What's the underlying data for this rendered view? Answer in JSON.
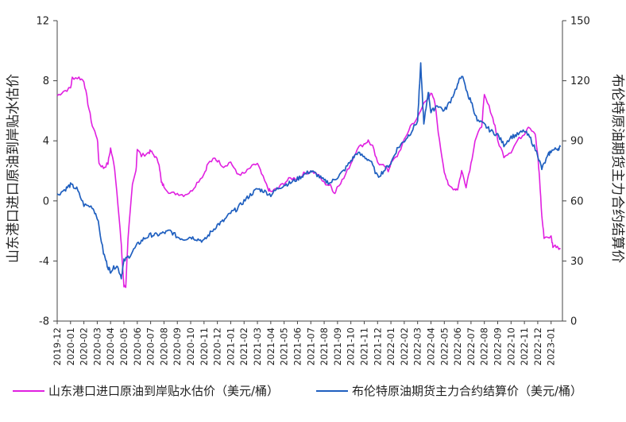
{
  "colors": {
    "series_left": "#e020e0",
    "series_right": "#1f5fbf",
    "axis": "#444444"
  },
  "chart_data": {
    "type": "line",
    "grid": false,
    "legend_placement": "bottom",
    "left_axis": {
      "label": "山东港口进口原油到岸贴水估价",
      "ylim": [
        -8,
        12
      ],
      "ticks": [
        "-8",
        "-4",
        "0",
        "4",
        "8",
        "12"
      ]
    },
    "right_axis": {
      "label": "布伦特原油期货主力合约结算价",
      "ylim": [
        0,
        150
      ],
      "ticks": [
        "0",
        "30",
        "60",
        "90",
        "120",
        "150"
      ]
    },
    "x_axis": {
      "start": "2019-12",
      "end": "2023-01",
      "tick_labels": [
        "2019-12",
        "2020-01",
        "2020-02",
        "2020-03",
        "2020-04",
        "2020-05",
        "2020-06",
        "2020-07",
        "2020-08",
        "2020-09",
        "2020-10",
        "2020-11",
        "2020-12",
        "2021-01",
        "2021-02",
        "2021-03",
        "2021-04",
        "2021-05",
        "2021-06",
        "2021-07",
        "2021-08",
        "2021-09",
        "2021-10",
        "2021-11",
        "2021-12",
        "2022-01",
        "2022-02",
        "2022-03",
        "2022-04",
        "2022-05",
        "2022-06",
        "2022-07",
        "2022-08",
        "2022-09",
        "2022-10",
        "2022-11",
        "2022-12",
        "2023-01"
      ]
    },
    "series": [
      {
        "name": "山东港口进口原油到岸贴水估价（美元/桶）",
        "axis": "left",
        "points": [
          [
            "2019-12",
            7.0
          ],
          [
            "2019-12-15",
            7.3
          ],
          [
            "2020-01",
            7.5
          ],
          [
            "2020-01-05",
            8.2
          ],
          [
            "2020-01-20",
            8.2
          ],
          [
            "2020-02",
            8.0
          ],
          [
            "2020-02-10",
            6.5
          ],
          [
            "2020-02-20",
            5.0
          ],
          [
            "2020-03",
            4.2
          ],
          [
            "2020-03-05",
            2.5
          ],
          [
            "2020-03-15",
            2.2
          ],
          [
            "2020-03-25",
            2.5
          ],
          [
            "2020-04",
            3.5
          ],
          [
            "2020-04-10",
            2.2
          ],
          [
            "2020-04-20",
            -1.0
          ],
          [
            "2020-04-25",
            -3.0
          ],
          [
            "2020-05",
            -5.7
          ],
          [
            "2020-05-05",
            -5.7
          ],
          [
            "2020-05-10",
            -2.5
          ],
          [
            "2020-05-20",
            1.0
          ],
          [
            "2020-05-28",
            2.0
          ],
          [
            "2020-06",
            3.5
          ],
          [
            "2020-06-10",
            3.0
          ],
          [
            "2020-06-25",
            3.2
          ],
          [
            "2020-07",
            3.3
          ],
          [
            "2020-07-10",
            3.0
          ],
          [
            "2020-07-20",
            2.5
          ],
          [
            "2020-07-25",
            1.2
          ],
          [
            "2020-08",
            1.0
          ],
          [
            "2020-08-15",
            0.5
          ],
          [
            "2020-09",
            0.5
          ],
          [
            "2020-09-15",
            0.4
          ],
          [
            "2020-10",
            0.6
          ],
          [
            "2020-10-15",
            1.2
          ],
          [
            "2020-11",
            1.8
          ],
          [
            "2020-11-10",
            2.5
          ],
          [
            "2020-11-25",
            2.8
          ],
          [
            "2020-12",
            2.7
          ],
          [
            "2020-12-15",
            2.3
          ],
          [
            "2021-01",
            2.6
          ],
          [
            "2021-01-15",
            1.8
          ],
          [
            "2021-02",
            1.8
          ],
          [
            "2021-02-15",
            2.2
          ],
          [
            "2021-03",
            2.5
          ],
          [
            "2021-03-10",
            1.8
          ],
          [
            "2021-03-25",
            0.8
          ],
          [
            "2021-04",
            0.6
          ],
          [
            "2021-04-15",
            0.8
          ],
          [
            "2021-05",
            1.2
          ],
          [
            "2021-05-15",
            1.5
          ],
          [
            "2021-06",
            1.5
          ],
          [
            "2021-06-15",
            1.8
          ],
          [
            "2021-07",
            2.0
          ],
          [
            "2021-07-15",
            1.8
          ],
          [
            "2021-08",
            1.2
          ],
          [
            "2021-08-15",
            1.0
          ],
          [
            "2021-08-25",
            0.5
          ],
          [
            "2021-09",
            1.0
          ],
          [
            "2021-09-15",
            1.5
          ],
          [
            "2021-10",
            2.5
          ],
          [
            "2021-10-15",
            3.5
          ],
          [
            "2021-11",
            3.8
          ],
          [
            "2021-11-10",
            4.0
          ],
          [
            "2021-11-20",
            3.6
          ],
          [
            "2021-12",
            2.5
          ],
          [
            "2021-12-10",
            2.5
          ],
          [
            "2021-12-25",
            2.0
          ],
          [
            "2022-01",
            2.5
          ],
          [
            "2022-01-15",
            3.0
          ],
          [
            "2022-02",
            4.0
          ],
          [
            "2022-02-15",
            5.0
          ],
          [
            "2022-03",
            5.5
          ],
          [
            "2022-03-15",
            6.5
          ],
          [
            "2022-04",
            7.2
          ],
          [
            "2022-04-10",
            6.5
          ],
          [
            "2022-04-20",
            4.0
          ],
          [
            "2022-05",
            2.0
          ],
          [
            "2022-05-10",
            1.0
          ],
          [
            "2022-05-25",
            0.8
          ],
          [
            "2022-06",
            0.8
          ],
          [
            "2022-06-10",
            2.0
          ],
          [
            "2022-06-20",
            1.0
          ],
          [
            "2022-07",
            2.5
          ],
          [
            "2022-07-10",
            4.0
          ],
          [
            "2022-07-25",
            5.0
          ],
          [
            "2022-08",
            7.0
          ],
          [
            "2022-08-15",
            6.0
          ],
          [
            "2022-08-25",
            5.0
          ],
          [
            "2022-09",
            4.0
          ],
          [
            "2022-09-15",
            3.0
          ],
          [
            "2022-10",
            3.3
          ],
          [
            "2022-10-15",
            4.0
          ],
          [
            "2022-11",
            4.5
          ],
          [
            "2022-11-10",
            5.0
          ],
          [
            "2022-11-25",
            4.5
          ],
          [
            "2022-12",
            3.0
          ],
          [
            "2022-12-05",
            1.5
          ],
          [
            "2022-12-10",
            -1.0
          ],
          [
            "2022-12-15",
            -2.4
          ],
          [
            "2023-01",
            -2.4
          ],
          [
            "2023-01-05",
            -3.0
          ],
          [
            "2023-01-15",
            -3.0
          ],
          [
            "2023-01-22",
            -3.2
          ]
        ]
      },
      {
        "name": "布伦特原油期货主力合约结算价（美元/桶）",
        "axis": "right",
        "points": [
          [
            "2019-12",
            63
          ],
          [
            "2019-12-20",
            66
          ],
          [
            "2020-01",
            68
          ],
          [
            "2020-01-15",
            66
          ],
          [
            "2020-02",
            58
          ],
          [
            "2020-02-20",
            57
          ],
          [
            "2020-03",
            52
          ],
          [
            "2020-03-15",
            34
          ],
          [
            "2020-03-25",
            27
          ],
          [
            "2020-04",
            25
          ],
          [
            "2020-04-15",
            28
          ],
          [
            "2020-04-25",
            22
          ],
          [
            "2020-05",
            30
          ],
          [
            "2020-05-15",
            33
          ],
          [
            "2020-06",
            38
          ],
          [
            "2020-06-15",
            41
          ],
          [
            "2020-07",
            43
          ],
          [
            "2020-07-15",
            43
          ],
          [
            "2020-08",
            44
          ],
          [
            "2020-08-15",
            45
          ],
          [
            "2020-09",
            42
          ],
          [
            "2020-09-15",
            41
          ],
          [
            "2020-10",
            42
          ],
          [
            "2020-10-15",
            41
          ],
          [
            "2020-11",
            40
          ],
          [
            "2020-11-15",
            44
          ],
          [
            "2020-12",
            48
          ],
          [
            "2020-12-15",
            50
          ],
          [
            "2021-01",
            54
          ],
          [
            "2021-01-15",
            56
          ],
          [
            "2021-02",
            60
          ],
          [
            "2021-02-15",
            63
          ],
          [
            "2021-03",
            66
          ],
          [
            "2021-03-15",
            65
          ],
          [
            "2021-04",
            63
          ],
          [
            "2021-04-15",
            66
          ],
          [
            "2021-05",
            68
          ],
          [
            "2021-05-15",
            69
          ],
          [
            "2021-06",
            71
          ],
          [
            "2021-06-15",
            73
          ],
          [
            "2021-07",
            75
          ],
          [
            "2021-07-15",
            73
          ],
          [
            "2021-08",
            70
          ],
          [
            "2021-08-15",
            69
          ],
          [
            "2021-09",
            72
          ],
          [
            "2021-09-15",
            75
          ],
          [
            "2021-10",
            80
          ],
          [
            "2021-10-15",
            84
          ],
          [
            "2021-11",
            82
          ],
          [
            "2021-11-15",
            80
          ],
          [
            "2021-12",
            72
          ],
          [
            "2021-12-15",
            75
          ],
          [
            "2022-01",
            79
          ],
          [
            "2022-01-15",
            86
          ],
          [
            "2022-02",
            90
          ],
          [
            "2022-02-15",
            94
          ],
          [
            "2022-03",
            100
          ],
          [
            "2022-03-08",
            128
          ],
          [
            "2022-03-15",
            98
          ],
          [
            "2022-03-25",
            115
          ],
          [
            "2022-04",
            104
          ],
          [
            "2022-04-15",
            108
          ],
          [
            "2022-05",
            105
          ],
          [
            "2022-05-15",
            110
          ],
          [
            "2022-06",
            118
          ],
          [
            "2022-06-10",
            123
          ],
          [
            "2022-06-25",
            112
          ],
          [
            "2022-07",
            110
          ],
          [
            "2022-07-15",
            100
          ],
          [
            "2022-08",
            98
          ],
          [
            "2022-08-15",
            95
          ],
          [
            "2022-09",
            93
          ],
          [
            "2022-09-15",
            88
          ],
          [
            "2022-10",
            92
          ],
          [
            "2022-10-15",
            93
          ],
          [
            "2022-11",
            95
          ],
          [
            "2022-11-15",
            91
          ],
          [
            "2022-12",
            83
          ],
          [
            "2022-12-10",
            76
          ],
          [
            "2022-12-25",
            83
          ],
          [
            "2023-01",
            85
          ],
          [
            "2023-01-15",
            86
          ],
          [
            "2023-01-22",
            87
          ]
        ]
      }
    ]
  }
}
